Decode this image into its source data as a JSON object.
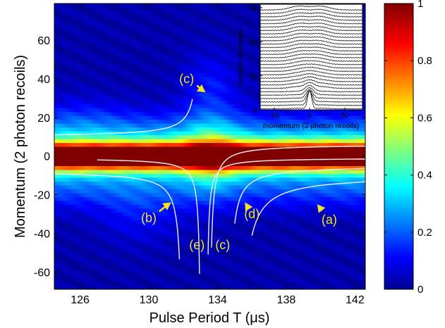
{
  "chart_data": [
    {
      "type": "heatmap",
      "title": "",
      "xlabel": "Pulse Period T (μs)",
      "ylabel": "Momentum (2 photon recoils)",
      "xlim": [
        124.5,
        142.6
      ],
      "ylim": [
        -69,
        79
      ],
      "x_ticks": [
        126,
        130,
        134,
        138,
        142
      ],
      "y_ticks": [
        60,
        40,
        20,
        0,
        -20,
        -40,
        -60
      ],
      "colorbar": {
        "range": [
          0,
          1
        ],
        "ticks": [
          0,
          0.2,
          0.4,
          0.6,
          0.8,
          1
        ],
        "colormap": "jet"
      },
      "central_peak_momentum": 0,
      "resonance_curves": [
        {
          "label": "(a)",
          "T_resonance": 132.7,
          "side": "below"
        },
        {
          "label": "(b)",
          "T_resonance": 132.7,
          "side": "below"
        },
        {
          "label": "(c)",
          "T_resonance": 133.8,
          "side": "both"
        },
        {
          "label": "(d)",
          "T_resonance": 133.8,
          "side": "below"
        },
        {
          "label": "(e)",
          "T_resonance": 133.1,
          "side": "below"
        }
      ],
      "annotations": [
        {
          "text": "(c)",
          "x": 132.2,
          "y": 40
        },
        {
          "text": "(b)",
          "x": 130.0,
          "y": -32
        },
        {
          "text": "(e)",
          "x": 132.8,
          "y": -46
        },
        {
          "text": "(c)",
          "x": 134.3,
          "y": -46
        },
        {
          "text": "(d)",
          "x": 136.0,
          "y": -30
        },
        {
          "text": "(a)",
          "x": 140.5,
          "y": -33
        }
      ]
    },
    {
      "type": "line",
      "title": "",
      "xlabel": "momentum (2 photon recoils)",
      "ylabel": "number of pulses",
      "xlim": [
        -70,
        75
      ],
      "ylim": [
        0,
        31
      ],
      "x_ticks": [
        -50,
        0,
        50
      ],
      "y_ticks": [
        0,
        10,
        20,
        30
      ],
      "series_count": 30,
      "series_color": "#000000"
    }
  ]
}
